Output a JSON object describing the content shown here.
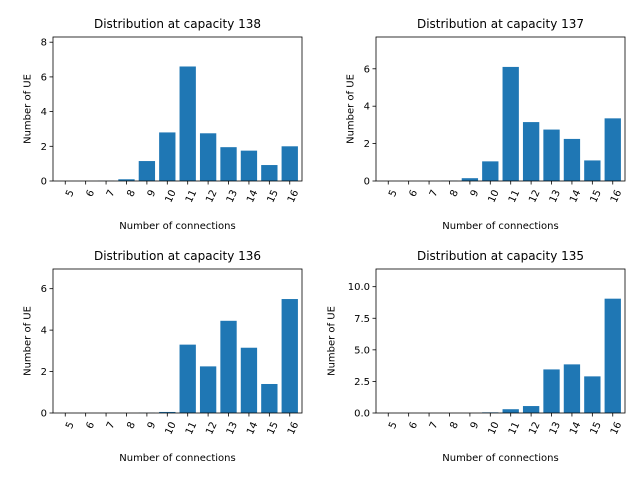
{
  "chart_data": [
    {
      "type": "bar",
      "title": "Distribution at capacity 138",
      "xlabel": "Number of connections",
      "ylabel": "Number of UE",
      "categories": [
        "5",
        "6",
        "7",
        "8",
        "9",
        "10",
        "11",
        "12",
        "13",
        "14",
        "15",
        "16"
      ],
      "values": [
        0,
        0,
        0.01,
        0.1,
        1.15,
        2.8,
        6.6,
        2.75,
        1.95,
        1.75,
        0.92,
        2.0
      ],
      "ylim": [
        0,
        8.3
      ],
      "yticks": [
        0,
        2,
        4,
        6,
        8
      ],
      "ytick_labels": [
        "0",
        "2",
        "4",
        "6",
        "8"
      ],
      "bar_color": "#1f77b4",
      "grid": false
    },
    {
      "type": "bar",
      "title": "Distribution at capacity 137",
      "xlabel": "Number of connections",
      "ylabel": "Number of UE",
      "categories": [
        "5",
        "6",
        "7",
        "8",
        "9",
        "10",
        "11",
        "12",
        "13",
        "14",
        "15",
        "16"
      ],
      "values": [
        0,
        0,
        0,
        0.01,
        0.15,
        1.05,
        6.1,
        3.15,
        2.75,
        2.25,
        1.1,
        3.35
      ],
      "ylim": [
        0,
        7.7
      ],
      "yticks": [
        0,
        2,
        4,
        6
      ],
      "ytick_labels": [
        "0",
        "2",
        "4",
        "6"
      ],
      "bar_color": "#1f77b4",
      "grid": false
    },
    {
      "type": "bar",
      "title": "Distribution at capacity 136",
      "xlabel": "Number of connections",
      "ylabel": "Number of UE",
      "categories": [
        "5",
        "6",
        "7",
        "8",
        "9",
        "10",
        "11",
        "12",
        "13",
        "14",
        "15",
        "16"
      ],
      "values": [
        0,
        0,
        0,
        0,
        0.01,
        0.05,
        3.3,
        2.25,
        4.45,
        3.15,
        1.4,
        5.5
      ],
      "ylim": [
        0,
        6.95
      ],
      "yticks": [
        0,
        2,
        4,
        6
      ],
      "ytick_labels": [
        "0",
        "2",
        "4",
        "6"
      ],
      "bar_color": "#1f77b4",
      "grid": false
    },
    {
      "type": "bar",
      "title": "Distribution at capacity 135",
      "xlabel": "Number of connections",
      "ylabel": "Number of UE",
      "categories": [
        "5",
        "6",
        "7",
        "8",
        "9",
        "10",
        "11",
        "12",
        "13",
        "14",
        "15",
        "16"
      ],
      "values": [
        0,
        0,
        0,
        0,
        0,
        0.05,
        0.3,
        0.55,
        3.45,
        3.85,
        2.9,
        9.05
      ],
      "ylim": [
        0,
        11.4
      ],
      "yticks": [
        0,
        2.5,
        5,
        7.5,
        10
      ],
      "ytick_labels": [
        "0.0",
        "2.5",
        "5.0",
        "7.5",
        "10.0"
      ],
      "bar_color": "#1f77b4",
      "grid": false
    }
  ]
}
